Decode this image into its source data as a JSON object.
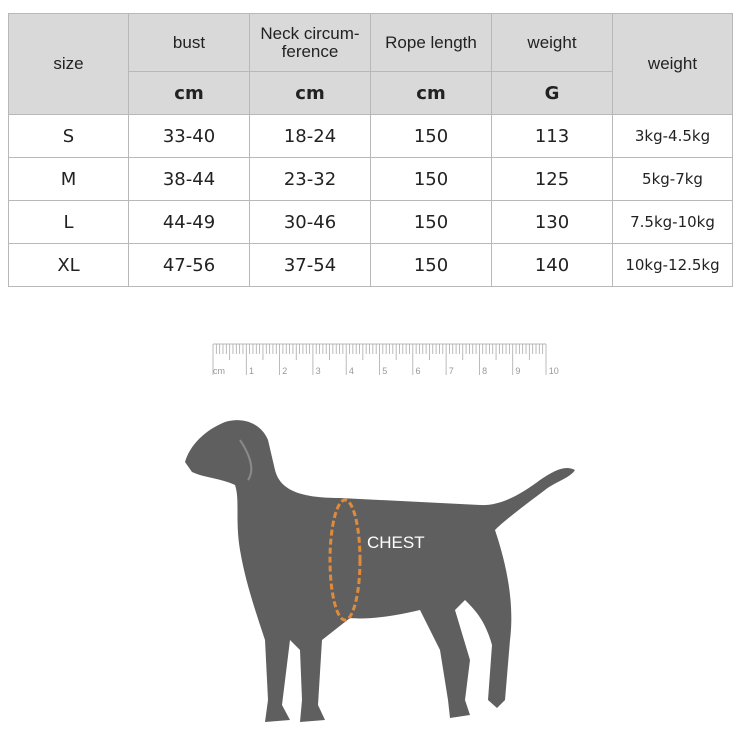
{
  "table": {
    "headers": {
      "size": "size",
      "bust": "bust",
      "neck": "Neck circum-\nference",
      "neck_l1": "Neck circum-",
      "neck_l2": "ference",
      "rope": "Rope length",
      "weight_g": "weight",
      "weight": "weight"
    },
    "units": {
      "bust": "cm",
      "neck": "cm",
      "rope": "cm",
      "weight_g": "G"
    },
    "rows": [
      {
        "size": "S",
        "bust": "33-40",
        "neck": "18-24",
        "rope": "150",
        "weight_g": "113",
        "weight": "3kg-4.5kg"
      },
      {
        "size": "M",
        "bust": "38-44",
        "neck": "23-32",
        "rope": "150",
        "weight_g": "125",
        "weight": "5kg-7kg"
      },
      {
        "size": "L",
        "bust": "44-49",
        "neck": "30-46",
        "rope": "150",
        "weight_g": "130",
        "weight": "7.5kg-10kg"
      },
      {
        "size": "XL",
        "bust": "47-56",
        "neck": "37-54",
        "rope": "150",
        "weight_g": "140",
        "weight": "10kg-12.5kg"
      }
    ]
  },
  "ruler": {
    "unit": "cm",
    "labels": [
      "1",
      "2",
      "3",
      "4",
      "5",
      "6",
      "7",
      "8",
      "9",
      "10"
    ]
  },
  "diagram": {
    "chest_label": "CHEST",
    "dog_color": "#5f5f5f",
    "chest_color": "#e08a3c"
  }
}
